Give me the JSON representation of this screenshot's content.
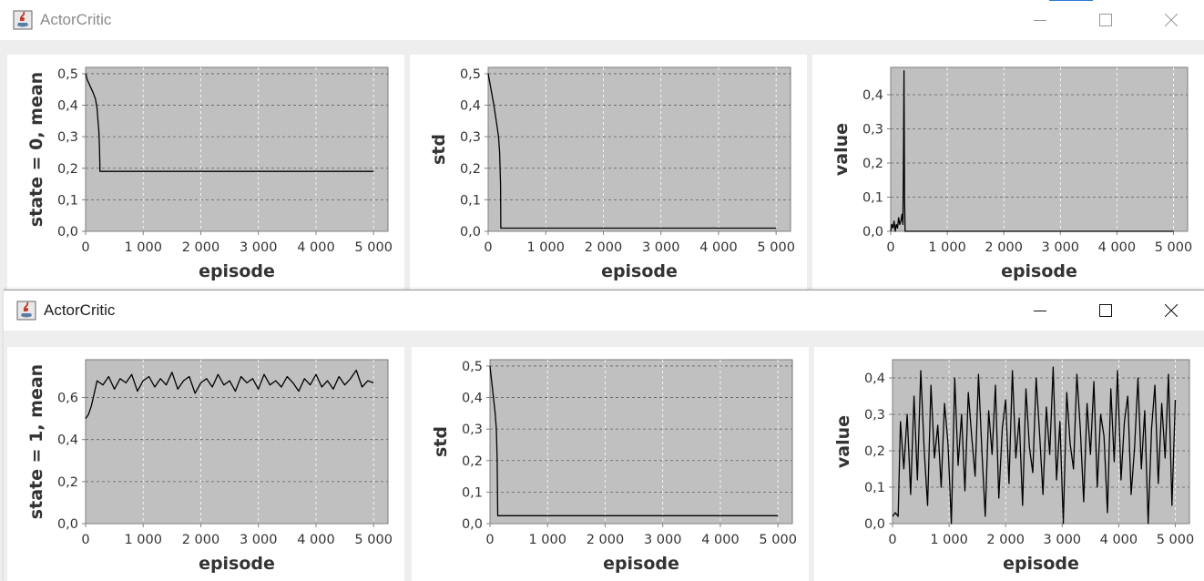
{
  "windows": [
    {
      "title": "ActorCritic",
      "title_active": false,
      "controls": {
        "minimize_icon": "minimize-icon",
        "maximize_icon": "maximize-icon",
        "close_icon": "close-icon"
      }
    },
    {
      "title": "ActorCritic",
      "title_active": true,
      "controls": {
        "minimize_icon": "minimize-icon",
        "maximize_icon": "maximize-icon",
        "close_icon": "close-icon"
      }
    }
  ],
  "chart_data": [
    {
      "type": "line",
      "window": 0,
      "xlabel": "episode",
      "ylabel": "state = 0, mean",
      "xlim": [
        0,
        5250
      ],
      "ylim": [
        0,
        0.52
      ],
      "xticks": [
        "0",
        "1 000",
        "2 000",
        "3 000",
        "4 000",
        "5 000"
      ],
      "yticks": [
        "0,0",
        "0,1",
        "0,2",
        "0,3",
        "0,4",
        "0,5"
      ],
      "series": [
        {
          "x": [
            0,
            30,
            80,
            130,
            170,
            200,
            215,
            230,
            240,
            250,
            5000
          ],
          "y": [
            0.5,
            0.48,
            0.46,
            0.44,
            0.42,
            0.39,
            0.35,
            0.32,
            0.27,
            0.19,
            0.19
          ]
        }
      ]
    },
    {
      "type": "line",
      "window": 0,
      "xlabel": "episode",
      "ylabel": "std",
      "xlim": [
        0,
        5250
      ],
      "ylim": [
        0,
        0.52
      ],
      "xticks": [
        "0",
        "1 000",
        "2 000",
        "3 000",
        "4 000",
        "5 000"
      ],
      "yticks": [
        "0,0",
        "0,1",
        "0,2",
        "0,3",
        "0,4",
        "0,5"
      ],
      "series": [
        {
          "x": [
            0,
            30,
            60,
            100,
            140,
            180,
            200,
            215,
            220,
            5000
          ],
          "y": [
            0.5,
            0.47,
            0.44,
            0.4,
            0.35,
            0.3,
            0.25,
            0.15,
            0.01,
            0.01
          ]
        }
      ]
    },
    {
      "type": "line",
      "window": 0,
      "xlabel": "episode",
      "ylabel": "value",
      "xlim": [
        0,
        5250
      ],
      "ylim": [
        0,
        0.48
      ],
      "xticks": [
        "0",
        "1 000",
        "2 000",
        "3 000",
        "4 000",
        "5 000"
      ],
      "yticks": [
        "0,0",
        "0,1",
        "0,2",
        "0,3",
        "0,4"
      ],
      "series": [
        {
          "x": [
            0,
            20,
            40,
            60,
            80,
            100,
            120,
            140,
            160,
            180,
            200,
            215,
            225,
            235,
            245,
            255,
            5000
          ],
          "y": [
            0.0,
            0.02,
            0.01,
            0.03,
            0.0,
            0.02,
            0.01,
            0.04,
            0.02,
            0.03,
            0.05,
            0.02,
            0.2,
            0.47,
            0.1,
            0.0,
            0.0
          ]
        }
      ]
    },
    {
      "type": "line",
      "window": 1,
      "xlabel": "episode",
      "ylabel": "state = 1, mean",
      "xlim": [
        0,
        5250
      ],
      "ylim": [
        0,
        0.78
      ],
      "xticks": [
        "0",
        "1 000",
        "2 000",
        "3 000",
        "4 000",
        "5 000"
      ],
      "yticks": [
        "0,0",
        "0,2",
        "0,4",
        "0,6"
      ],
      "series": [
        {
          "x": [
            0,
            50,
            100,
            150,
            200,
            300,
            400,
            500,
            600,
            700,
            800,
            900,
            1000,
            1100,
            1200,
            1300,
            1400,
            1500,
            1600,
            1700,
            1800,
            1900,
            2000,
            2100,
            2200,
            2300,
            2400,
            2500,
            2600,
            2700,
            2800,
            2900,
            3000,
            3100,
            3200,
            3300,
            3400,
            3500,
            3600,
            3700,
            3800,
            3900,
            4000,
            4100,
            4200,
            4300,
            4400,
            4500,
            4600,
            4700,
            4800,
            4900,
            5000
          ],
          "y": [
            0.5,
            0.52,
            0.56,
            0.62,
            0.68,
            0.66,
            0.7,
            0.64,
            0.69,
            0.67,
            0.71,
            0.63,
            0.68,
            0.7,
            0.65,
            0.69,
            0.66,
            0.72,
            0.64,
            0.68,
            0.7,
            0.62,
            0.67,
            0.69,
            0.65,
            0.71,
            0.66,
            0.68,
            0.63,
            0.7,
            0.67,
            0.69,
            0.64,
            0.71,
            0.66,
            0.68,
            0.65,
            0.7,
            0.67,
            0.63,
            0.69,
            0.66,
            0.71,
            0.65,
            0.68,
            0.64,
            0.7,
            0.66,
            0.69,
            0.73,
            0.65,
            0.68,
            0.67
          ]
        }
      ]
    },
    {
      "type": "line",
      "window": 1,
      "xlabel": "episode",
      "ylabel": "std",
      "xlim": [
        0,
        5250
      ],
      "ylim": [
        0,
        0.52
      ],
      "xticks": [
        "0",
        "1 000",
        "2 000",
        "3 000",
        "4 000",
        "5 000"
      ],
      "yticks": [
        "0,0",
        "0,1",
        "0,2",
        "0,3",
        "0,4",
        "0,5"
      ],
      "series": [
        {
          "x": [
            0,
            30,
            60,
            90,
            110,
            125,
            135,
            5000
          ],
          "y": [
            0.5,
            0.45,
            0.4,
            0.35,
            0.3,
            0.2,
            0.025,
            0.025
          ]
        }
      ]
    },
    {
      "type": "line",
      "window": 1,
      "xlabel": "episode",
      "ylabel": "value",
      "xlim": [
        0,
        5250
      ],
      "ylim": [
        0,
        0.45
      ],
      "xticks": [
        "0",
        "1 000",
        "2 000",
        "3 000",
        "4 000",
        "5 000"
      ],
      "yticks": [
        "0,0",
        "0,1",
        "0,2",
        "0,3",
        "0,4"
      ],
      "series": [
        {
          "x": [
            0,
            50,
            100,
            140,
            200,
            260,
            320,
            380,
            440,
            500,
            560,
            620,
            680,
            740,
            800,
            860,
            920,
            980,
            1040,
            1100,
            1160,
            1220,
            1280,
            1340,
            1400,
            1460,
            1520,
            1580,
            1640,
            1700,
            1760,
            1820,
            1880,
            1940,
            2000,
            2060,
            2120,
            2180,
            2240,
            2300,
            2360,
            2420,
            2480,
            2540,
            2600,
            2660,
            2720,
            2780,
            2840,
            2900,
            2960,
            3020,
            3080,
            3140,
            3200,
            3260,
            3320,
            3380,
            3440,
            3500,
            3560,
            3620,
            3680,
            3740,
            3800,
            3860,
            3920,
            3980,
            4040,
            4100,
            4160,
            4220,
            4280,
            4340,
            4400,
            4460,
            4520,
            4580,
            4640,
            4700,
            4760,
            4820,
            4880,
            4940,
            5000
          ],
          "y": [
            0.02,
            0.03,
            0.02,
            0.28,
            0.15,
            0.3,
            0.08,
            0.35,
            0.12,
            0.42,
            0.2,
            0.05,
            0.38,
            0.18,
            0.27,
            0.1,
            0.33,
            0.22,
            0.0,
            0.4,
            0.16,
            0.3,
            0.09,
            0.36,
            0.24,
            0.13,
            0.41,
            0.2,
            0.02,
            0.31,
            0.19,
            0.38,
            0.07,
            0.26,
            0.34,
            0.11,
            0.42,
            0.18,
            0.29,
            0.05,
            0.37,
            0.21,
            0.14,
            0.4,
            0.25,
            0.08,
            0.32,
            0.19,
            0.43,
            0.12,
            0.28,
            0.0,
            0.36,
            0.22,
            0.15,
            0.41,
            0.26,
            0.06,
            0.33,
            0.19,
            0.39,
            0.1,
            0.3,
            0.24,
            0.03,
            0.37,
            0.17,
            0.42,
            0.12,
            0.28,
            0.35,
            0.08,
            0.21,
            0.4,
            0.15,
            0.31,
            0.0,
            0.26,
            0.38,
            0.11,
            0.33,
            0.18,
            0.41,
            0.05,
            0.34
          ]
        }
      ]
    }
  ]
}
